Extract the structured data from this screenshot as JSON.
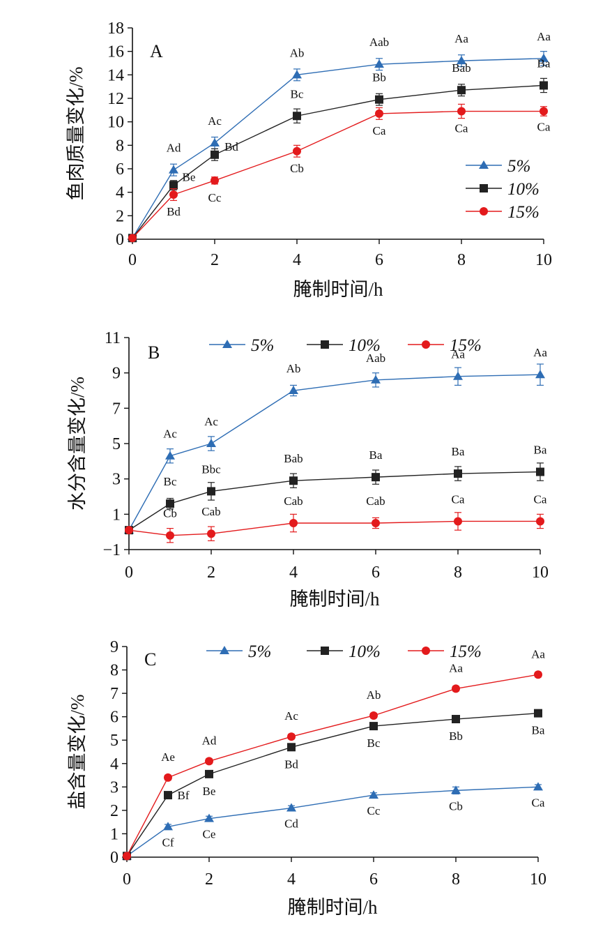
{
  "chart_data": [
    {
      "type": "line",
      "panel_label": "A",
      "xlabel": "腌制时间/h",
      "ylabel": "鱼肉质量变化/%",
      "x": [
        0,
        1,
        2,
        4,
        6,
        8,
        10
      ],
      "xticks": [
        0,
        2,
        4,
        6,
        8,
        10
      ],
      "ylim": [
        0,
        18
      ],
      "yticks": [
        0,
        2,
        4,
        6,
        8,
        10,
        12,
        14,
        16,
        18
      ],
      "legend_position": "right",
      "series": [
        {
          "name": "5%",
          "marker": "triangle",
          "color": "#2e6db4",
          "values": [
            0.1,
            5.9,
            8.2,
            14.0,
            14.9,
            15.2,
            15.4
          ],
          "errors": [
            0.1,
            0.5,
            0.5,
            0.5,
            0.5,
            0.5,
            0.6
          ],
          "labels": [
            "",
            "Ad",
            "Ac",
            "Ab",
            "Aab",
            "Aa",
            "Aa"
          ]
        },
        {
          "name": "10%",
          "marker": "square",
          "color": "#222222",
          "values": [
            0.1,
            4.6,
            7.2,
            10.5,
            11.9,
            12.7,
            13.1
          ],
          "errors": [
            0.1,
            0.4,
            0.5,
            0.6,
            0.5,
            0.5,
            0.6
          ],
          "labels": [
            "",
            "Be",
            "Bd",
            "Bc",
            "Bb",
            "Bab",
            "Ba"
          ]
        },
        {
          "name": "15%",
          "marker": "circle",
          "color": "#e31a1c",
          "values": [
            0.1,
            3.8,
            5.0,
            7.5,
            10.7,
            10.9,
            10.9
          ],
          "errors": [
            0.1,
            0.5,
            0.3,
            0.5,
            0.5,
            0.6,
            0.4
          ],
          "labels": [
            "",
            "Bd",
            "Cc",
            "Cb",
            "Ca",
            "Ca",
            "Ca"
          ]
        }
      ]
    },
    {
      "type": "line",
      "panel_label": "B",
      "xlabel": "腌制时间/h",
      "ylabel": "水分含量变化/%",
      "x": [
        0,
        1,
        2,
        4,
        6,
        8,
        10
      ],
      "xticks": [
        0,
        2,
        4,
        6,
        8,
        10
      ],
      "ylim": [
        -1,
        11
      ],
      "yticks": [
        -1,
        1,
        3,
        5,
        7,
        9,
        11
      ],
      "legend_position": "top",
      "series": [
        {
          "name": "5%",
          "marker": "triangle",
          "color": "#2e6db4",
          "values": [
            0.1,
            4.3,
            5.0,
            8.0,
            8.6,
            8.8,
            8.9
          ],
          "errors": [
            0.1,
            0.4,
            0.4,
            0.3,
            0.4,
            0.5,
            0.6
          ],
          "labels": [
            "",
            "Ac",
            "Ac",
            "Ab",
            "Aab",
            "Aa",
            "Aa"
          ]
        },
        {
          "name": "10%",
          "marker": "square",
          "color": "#222222",
          "values": [
            0.1,
            1.6,
            2.3,
            2.9,
            3.1,
            3.3,
            3.4
          ],
          "errors": [
            0.1,
            0.3,
            0.5,
            0.4,
            0.4,
            0.4,
            0.5
          ],
          "labels": [
            "",
            "Bc",
            "Bbc",
            "Bab",
            "Ba",
            "Ba",
            "Ba"
          ]
        },
        {
          "name": "15%",
          "marker": "circle",
          "color": "#e31a1c",
          "values": [
            0.1,
            -0.2,
            -0.1,
            0.5,
            0.5,
            0.6,
            0.6
          ],
          "errors": [
            0.1,
            0.4,
            0.4,
            0.5,
            0.3,
            0.5,
            0.4
          ],
          "labels": [
            "",
            "Cb",
            "Cab",
            "Cab",
            "Cab",
            "Ca",
            "Ca"
          ]
        }
      ]
    },
    {
      "type": "line",
      "panel_label": "C",
      "xlabel": "腌制时间/h",
      "ylabel": "盐含量变化/%",
      "x": [
        0,
        1,
        2,
        4,
        6,
        8,
        10
      ],
      "xticks": [
        0,
        2,
        4,
        6,
        8,
        10
      ],
      "ylim": [
        0,
        9
      ],
      "yticks": [
        0,
        1,
        2,
        3,
        4,
        5,
        6,
        7,
        8,
        9
      ],
      "legend_position": "top",
      "series": [
        {
          "name": "5%",
          "marker": "triangle",
          "color": "#2e6db4",
          "values": [
            0.05,
            1.3,
            1.65,
            2.1,
            2.65,
            2.85,
            3.0
          ],
          "errors": [
            0.05,
            0.1,
            0.1,
            0.1,
            0.1,
            0.15,
            0.1
          ],
          "labels": [
            "",
            "Cf",
            "Ce",
            "Cd",
            "Cc",
            "Cb",
            "Ca"
          ]
        },
        {
          "name": "10%",
          "marker": "square",
          "color": "#222222",
          "values": [
            0.05,
            2.65,
            3.55,
            4.7,
            5.6,
            5.9,
            6.15
          ],
          "errors": [
            0.05,
            0.1,
            0.1,
            0.1,
            0.1,
            0.1,
            0.1
          ],
          "labels": [
            "",
            "Bf",
            "Be",
            "Bd",
            "Bc",
            "Bb",
            "Ba"
          ]
        },
        {
          "name": "15%",
          "marker": "circle",
          "color": "#e31a1c",
          "values": [
            0.05,
            3.4,
            4.1,
            5.15,
            6.05,
            7.2,
            7.8
          ],
          "errors": [
            0.05,
            0.1,
            0.1,
            0.1,
            0.1,
            0.1,
            0.1
          ],
          "labels": [
            "",
            "Ae",
            "Ad",
            "Ac",
            "Ab",
            "Aa",
            "Aa"
          ]
        }
      ]
    }
  ]
}
